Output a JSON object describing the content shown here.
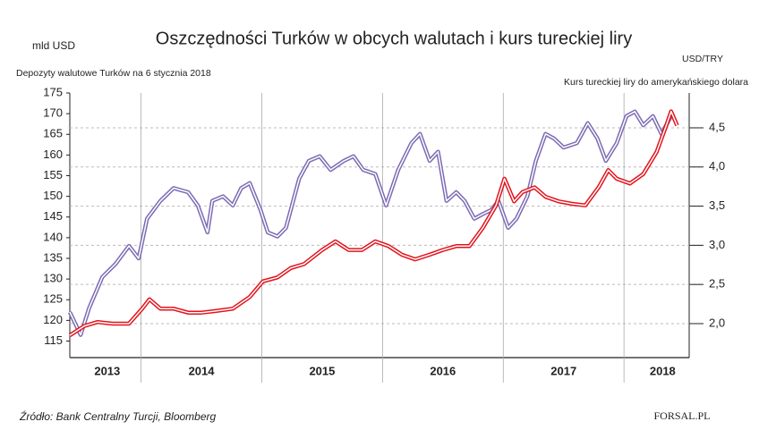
{
  "chart_data": {
    "type": "line",
    "title": "Oszczędności Turków w obcych walutach i kurs tureckiej liry",
    "y_label": "mld USD",
    "y2_label": "USD/TRY",
    "source": "Źródło: Bank Centralny Turcji, Bloomberg",
    "logo": "FORSAL.PL",
    "xlim": [
      2013.41,
      2018.54
    ],
    "xticks": [
      {
        "value": 2013.72,
        "label": "2013"
      },
      {
        "value": 2014.5,
        "label": "2014"
      },
      {
        "value": 2015.5,
        "label": "2015"
      },
      {
        "value": 2016.5,
        "label": "2016"
      },
      {
        "value": 2017.5,
        "label": "2017"
      },
      {
        "value": 2018.32,
        "label": "2018"
      }
    ],
    "xgrid": [
      2014,
      2015,
      2016,
      2017,
      2018
    ],
    "ylim": [
      111,
      175
    ],
    "yticks": [
      115,
      120,
      125,
      130,
      135,
      140,
      145,
      150,
      155,
      160,
      165,
      170,
      175
    ],
    "y2lim": [
      1.566,
      4.945
    ],
    "y2ticks": [
      {
        "value": 2.0,
        "label": "2,0"
      },
      {
        "value": 2.5,
        "label": "2,5"
      },
      {
        "value": 3.0,
        "label": "3,0"
      },
      {
        "value": 3.5,
        "label": "3,5"
      },
      {
        "value": 4.0,
        "label": "4,0"
      },
      {
        "value": 4.5,
        "label": "4,5"
      }
    ],
    "grid": true,
    "series": [
      {
        "name": "Depozyty walutowe Turków na 6 stycznia 2018",
        "color": "#7d6bb3",
        "x": [
          2013.41,
          2013.5,
          2013.57,
          2013.68,
          2013.79,
          2013.9,
          2013.98,
          2014.05,
          2014.16,
          2014.27,
          2014.39,
          2014.47,
          2014.55,
          2014.59,
          2014.68,
          2014.76,
          2014.83,
          2014.9,
          2014.99,
          2015.05,
          2015.13,
          2015.2,
          2015.31,
          2015.39,
          2015.48,
          2015.57,
          2015.68,
          2015.76,
          2015.84,
          2015.94,
          2016.03,
          2016.13,
          2016.24,
          2016.31,
          2016.39,
          2016.46,
          2016.53,
          2016.61,
          2016.68,
          2016.76,
          2016.83,
          2016.9,
          2016.96,
          2017.04,
          2017.11,
          2017.2,
          2017.27,
          2017.35,
          2017.42,
          2017.5,
          2017.61,
          2017.7,
          2017.78,
          2017.85,
          2017.94,
          2018.02,
          2018.09,
          2018.16,
          2018.24,
          2018.31,
          2018.39
        ],
        "values": [
          122,
          116.5,
          123,
          130.5,
          133.7,
          138,
          135,
          144.6,
          148.9,
          152,
          151,
          147.8,
          141.3,
          148.9,
          150,
          147.8,
          152,
          153.2,
          146.7,
          141.3,
          140.3,
          142.4,
          154.3,
          158.6,
          159.7,
          156.4,
          158.6,
          159.7,
          156.4,
          155.4,
          147.8,
          156.4,
          162.9,
          165.1,
          158.6,
          160.8,
          148.9,
          151,
          148.9,
          144.6,
          145.7,
          146.7,
          148.9,
          142.4,
          144.6,
          150,
          158.6,
          165.1,
          164,
          161.8,
          162.9,
          167.7,
          164,
          158.6,
          162.9,
          169.4,
          170.5,
          167.2,
          169.4,
          165.1,
          169.4
        ]
      },
      {
        "name": "Kurs tureckiej liry do amerykańskiego dolara",
        "color": "#e2141e",
        "axis": "y2",
        "x": [
          2013.41,
          2013.53,
          2013.64,
          2013.76,
          2013.9,
          2014.01,
          2014.07,
          2014.16,
          2014.27,
          2014.39,
          2014.5,
          2014.61,
          2014.76,
          2014.9,
          2015.01,
          2015.13,
          2015.24,
          2015.35,
          2015.5,
          2015.61,
          2015.72,
          2015.83,
          2015.94,
          2016.05,
          2016.16,
          2016.27,
          2016.39,
          2016.5,
          2016.61,
          2016.72,
          2016.83,
          2016.94,
          2017.01,
          2017.09,
          2017.16,
          2017.26,
          2017.35,
          2017.46,
          2017.57,
          2017.68,
          2017.79,
          2017.87,
          2017.94,
          2018.05,
          2018.16,
          2018.27,
          2018.35,
          2018.39,
          2018.44
        ],
        "values": [
          1.85,
          1.97,
          2.02,
          2.0,
          2.0,
          2.19,
          2.31,
          2.19,
          2.19,
          2.14,
          2.14,
          2.16,
          2.19,
          2.34,
          2.54,
          2.59,
          2.71,
          2.76,
          2.94,
          3.05,
          2.94,
          2.94,
          3.05,
          2.99,
          2.88,
          2.82,
          2.88,
          2.94,
          2.99,
          2.99,
          3.22,
          3.51,
          3.85,
          3.56,
          3.68,
          3.74,
          3.62,
          3.56,
          3.53,
          3.51,
          3.74,
          3.96,
          3.85,
          3.79,
          3.91,
          4.19,
          4.53,
          4.71,
          4.53
        ]
      }
    ]
  }
}
